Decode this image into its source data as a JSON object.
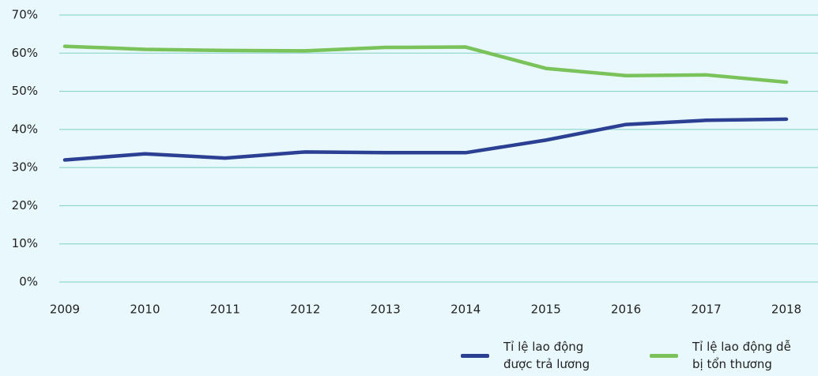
{
  "chart_data": {
    "type": "line",
    "categories": [
      "2009",
      "2010",
      "2011",
      "2012",
      "2013",
      "2014",
      "2015",
      "2016",
      "2017",
      "2018"
    ],
    "series": [
      {
        "name": "Tỉ lệ lao động được trả lương",
        "color": "#2b3f93",
        "values": [
          32.0,
          33.6,
          32.5,
          34.1,
          33.9,
          33.9,
          37.2,
          41.3,
          42.4,
          42.7
        ]
      },
      {
        "name": "Tỉ lệ lao động dễ bị tổn thương",
        "color": "#7ac25a",
        "values": [
          61.8,
          61.0,
          60.7,
          60.6,
          61.5,
          61.6,
          56.0,
          54.1,
          54.3,
          52.4
        ]
      }
    ],
    "ylim": [
      0,
      70
    ],
    "yticks": [
      {
        "value": 0,
        "label": "0%"
      },
      {
        "value": 10,
        "label": "10%"
      },
      {
        "value": 20,
        "label": "20%"
      },
      {
        "value": 30,
        "label": "30%"
      },
      {
        "value": 40,
        "label": "40%"
      },
      {
        "value": 50,
        "label": "50%"
      },
      {
        "value": 60,
        "label": "60%"
      },
      {
        "value": 70,
        "label": "70%"
      }
    ],
    "grid": true
  }
}
